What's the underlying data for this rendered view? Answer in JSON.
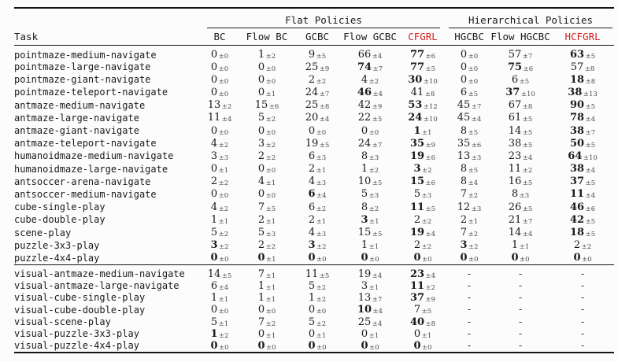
{
  "misc": {
    "pm": "±"
  },
  "colors": {
    "accent_red": "#d42020",
    "rule": "#141414",
    "text": "#1a1a1a",
    "muted": "#4a4a4a"
  },
  "header": {
    "task_label": "Task",
    "groups": [
      {
        "label": "Flat Policies"
      },
      {
        "label": "Hierarchical Policies"
      }
    ],
    "columns": [
      {
        "label": "BC",
        "red": false
      },
      {
        "label": "Flow BC",
        "red": false
      },
      {
        "label": "GCBC",
        "red": false
      },
      {
        "label": "Flow GCBC",
        "red": false
      },
      {
        "label": "CFGRL",
        "red": true
      },
      {
        "label": "HGCBC",
        "red": false
      },
      {
        "label": "Flow HGCBC",
        "red": false
      },
      {
        "label": "HCFGRL",
        "red": true
      }
    ]
  },
  "sections": [
    {
      "rows": [
        {
          "task": "pointmaze-medium-navigate",
          "cells": [
            [
              "0",
              "0",
              0
            ],
            [
              "1",
              "2",
              0
            ],
            [
              "9",
              "5",
              0
            ],
            [
              "66",
              "4",
              0
            ],
            [
              "77",
              "6",
              1
            ],
            [
              "0",
              "0",
              0
            ],
            [
              "57",
              "7",
              0
            ],
            [
              "63",
              "5",
              1
            ]
          ]
        },
        {
          "task": "pointmaze-large-navigate",
          "cells": [
            [
              "0",
              "0",
              0
            ],
            [
              "0",
              "0",
              0
            ],
            [
              "25",
              "9",
              0
            ],
            [
              "74",
              "7",
              1
            ],
            [
              "77",
              "5",
              1
            ],
            [
              "0",
              "0",
              0
            ],
            [
              "75",
              "6",
              1
            ],
            [
              "57",
              "8",
              0
            ]
          ]
        },
        {
          "task": "pointmaze-giant-navigate",
          "cells": [
            [
              "0",
              "0",
              0
            ],
            [
              "0",
              "0",
              0
            ],
            [
              "2",
              "2",
              0
            ],
            [
              "4",
              "2",
              0
            ],
            [
              "30",
              "10",
              1
            ],
            [
              "0",
              "0",
              0
            ],
            [
              "6",
              "5",
              0
            ],
            [
              "18",
              "8",
              1
            ]
          ]
        },
        {
          "task": "pointmaze-teleport-navigate",
          "cells": [
            [
              "0",
              "0",
              0
            ],
            [
              "0",
              "1",
              0
            ],
            [
              "24",
              "7",
              0
            ],
            [
              "46",
              "4",
              1
            ],
            [
              "41",
              "8",
              0
            ],
            [
              "6",
              "5",
              0
            ],
            [
              "37",
              "10",
              1
            ],
            [
              "38",
              "13",
              1
            ]
          ]
        },
        {
          "task": "antmaze-medium-navigate",
          "cells": [
            [
              "13",
              "2",
              0
            ],
            [
              "15",
              "6",
              0
            ],
            [
              "25",
              "8",
              0
            ],
            [
              "42",
              "9",
              0
            ],
            [
              "53",
              "12",
              1
            ],
            [
              "45",
              "7",
              0
            ],
            [
              "67",
              "8",
              0
            ],
            [
              "90",
              "5",
              1
            ]
          ]
        },
        {
          "task": "antmaze-large-navigate",
          "cells": [
            [
              "11",
              "4",
              0
            ],
            [
              "5",
              "2",
              0
            ],
            [
              "20",
              "4",
              0
            ],
            [
              "22",
              "5",
              0
            ],
            [
              "24",
              "10",
              1
            ],
            [
              "45",
              "4",
              0
            ],
            [
              "61",
              "5",
              0
            ],
            [
              "78",
              "4",
              1
            ]
          ]
        },
        {
          "task": "antmaze-giant-navigate",
          "cells": [
            [
              "0",
              "0",
              0
            ],
            [
              "0",
              "0",
              0
            ],
            [
              "0",
              "0",
              0
            ],
            [
              "0",
              "0",
              0
            ],
            [
              "1",
              "1",
              1
            ],
            [
              "8",
              "5",
              0
            ],
            [
              "14",
              "5",
              0
            ],
            [
              "38",
              "7",
              1
            ]
          ]
        },
        {
          "task": "antmaze-teleport-navigate",
          "cells": [
            [
              "4",
              "2",
              0
            ],
            [
              "3",
              "2",
              0
            ],
            [
              "19",
              "5",
              0
            ],
            [
              "24",
              "7",
              0
            ],
            [
              "35",
              "9",
              1
            ],
            [
              "35",
              "6",
              0
            ],
            [
              "38",
              "5",
              0
            ],
            [
              "50",
              "5",
              1
            ]
          ]
        },
        {
          "task": "humanoidmaze-medium-navigate",
          "cells": [
            [
              "3",
              "3",
              0
            ],
            [
              "2",
              "2",
              0
            ],
            [
              "6",
              "3",
              0
            ],
            [
              "8",
              "3",
              0
            ],
            [
              "19",
              "6",
              1
            ],
            [
              "13",
              "3",
              0
            ],
            [
              "23",
              "4",
              0
            ],
            [
              "64",
              "10",
              1
            ]
          ]
        },
        {
          "task": "humanoidmaze-large-navigate",
          "cells": [
            [
              "0",
              "1",
              0
            ],
            [
              "0",
              "0",
              0
            ],
            [
              "2",
              "1",
              0
            ],
            [
              "1",
              "2",
              0
            ],
            [
              "3",
              "2",
              1
            ],
            [
              "8",
              "5",
              0
            ],
            [
              "11",
              "2",
              0
            ],
            [
              "38",
              "4",
              1
            ]
          ]
        },
        {
          "task": "antsoccer-arena-navigate",
          "cells": [
            [
              "2",
              "2",
              0
            ],
            [
              "4",
              "1",
              0
            ],
            [
              "4",
              "3",
              0
            ],
            [
              "10",
              "5",
              0
            ],
            [
              "15",
              "6",
              1
            ],
            [
              "8",
              "4",
              0
            ],
            [
              "16",
              "5",
              0
            ],
            [
              "37",
              "5",
              1
            ]
          ]
        },
        {
          "task": "antsoccer-medium-navigate",
          "cells": [
            [
              "0",
              "0",
              0
            ],
            [
              "0",
              "0",
              0
            ],
            [
              "6",
              "4",
              1
            ],
            [
              "5",
              "3",
              0
            ],
            [
              "5",
              "3",
              0
            ],
            [
              "7",
              "2",
              0
            ],
            [
              "8",
              "3",
              0
            ],
            [
              "11",
              "4",
              1
            ]
          ]
        },
        {
          "task": "cube-single-play",
          "cells": [
            [
              "4",
              "2",
              0
            ],
            [
              "7",
              "5",
              0
            ],
            [
              "6",
              "2",
              0
            ],
            [
              "8",
              "2",
              0
            ],
            [
              "11",
              "5",
              1
            ],
            [
              "12",
              "3",
              0
            ],
            [
              "26",
              "5",
              0
            ],
            [
              "46",
              "6",
              1
            ]
          ]
        },
        {
          "task": "cube-double-play",
          "cells": [
            [
              "1",
              "1",
              0
            ],
            [
              "2",
              "1",
              0
            ],
            [
              "2",
              "1",
              0
            ],
            [
              "3",
              "1",
              1
            ],
            [
              "2",
              "2",
              0
            ],
            [
              "2",
              "1",
              0
            ],
            [
              "21",
              "7",
              0
            ],
            [
              "42",
              "5",
              1
            ]
          ]
        },
        {
          "task": "scene-play",
          "cells": [
            [
              "5",
              "2",
              0
            ],
            [
              "5",
              "3",
              0
            ],
            [
              "4",
              "3",
              0
            ],
            [
              "15",
              "5",
              0
            ],
            [
              "19",
              "4",
              1
            ],
            [
              "7",
              "2",
              0
            ],
            [
              "14",
              "4",
              0
            ],
            [
              "18",
              "5",
              1
            ]
          ]
        },
        {
          "task": "puzzle-3x3-play",
          "cells": [
            [
              "3",
              "2",
              1
            ],
            [
              "2",
              "2",
              0
            ],
            [
              "3",
              "2",
              1
            ],
            [
              "1",
              "1",
              0
            ],
            [
              "2",
              "2",
              0
            ],
            [
              "3",
              "2",
              1
            ],
            [
              "1",
              "1",
              0
            ],
            [
              "2",
              "2",
              0
            ]
          ]
        },
        {
          "task": "puzzle-4x4-play",
          "cells": [
            [
              "0",
              "0",
              1
            ],
            [
              "0",
              "1",
              1
            ],
            [
              "0",
              "0",
              1
            ],
            [
              "0",
              "0",
              1
            ],
            [
              "0",
              "0",
              1
            ],
            [
              "0",
              "0",
              1
            ],
            [
              "0",
              "0",
              1
            ],
            [
              "0",
              "0",
              1
            ]
          ]
        }
      ]
    },
    {
      "rows": [
        {
          "task": "visual-antmaze-medium-navigate",
          "cells": [
            [
              "14",
              "5",
              0
            ],
            [
              "7",
              "1",
              0
            ],
            [
              "11",
              "5",
              0
            ],
            [
              "19",
              "4",
              0
            ],
            [
              "23",
              "4",
              1
            ],
            [
              "-",
              null,
              0
            ],
            [
              "-",
              null,
              0
            ],
            [
              "-",
              null,
              0
            ]
          ]
        },
        {
          "task": "visual-antmaze-large-navigate",
          "cells": [
            [
              "6",
              "4",
              0
            ],
            [
              "1",
              "1",
              0
            ],
            [
              "5",
              "2",
              0
            ],
            [
              "3",
              "1",
              0
            ],
            [
              "11",
              "2",
              1
            ],
            [
              "-",
              null,
              0
            ],
            [
              "-",
              null,
              0
            ],
            [
              "-",
              null,
              0
            ]
          ]
        },
        {
          "task": "visual-cube-single-play",
          "cells": [
            [
              "1",
              "1",
              0
            ],
            [
              "1",
              "1",
              0
            ],
            [
              "1",
              "2",
              0
            ],
            [
              "13",
              "7",
              0
            ],
            [
              "37",
              "9",
              1
            ],
            [
              "-",
              null,
              0
            ],
            [
              "-",
              null,
              0
            ],
            [
              "-",
              null,
              0
            ]
          ]
        },
        {
          "task": "visual-cube-double-play",
          "cells": [
            [
              "0",
              "0",
              0
            ],
            [
              "0",
              "0",
              0
            ],
            [
              "0",
              "0",
              0
            ],
            [
              "10",
              "4",
              1
            ],
            [
              "7",
              "5",
              0
            ],
            [
              "-",
              null,
              0
            ],
            [
              "-",
              null,
              0
            ],
            [
              "-",
              null,
              0
            ]
          ]
        },
        {
          "task": "visual-scene-play",
          "cells": [
            [
              "5",
              "1",
              0
            ],
            [
              "7",
              "2",
              0
            ],
            [
              "5",
              "2",
              0
            ],
            [
              "25",
              "4",
              0
            ],
            [
              "40",
              "8",
              1
            ],
            [
              "-",
              null,
              0
            ],
            [
              "-",
              null,
              0
            ],
            [
              "-",
              null,
              0
            ]
          ]
        },
        {
          "task": "visual-puzzle-3x3-play",
          "cells": [
            [
              "1",
              "2",
              1
            ],
            [
              "0",
              "1",
              0
            ],
            [
              "0",
              "1",
              0
            ],
            [
              "0",
              "1",
              0
            ],
            [
              "0",
              "1",
              0
            ],
            [
              "-",
              null,
              0
            ],
            [
              "-",
              null,
              0
            ],
            [
              "-",
              null,
              0
            ]
          ]
        },
        {
          "task": "visual-puzzle-4x4-play",
          "cells": [
            [
              "0",
              "0",
              1
            ],
            [
              "0",
              "0",
              1
            ],
            [
              "0",
              "0",
              1
            ],
            [
              "0",
              "0",
              1
            ],
            [
              "0",
              "0",
              1
            ],
            [
              "-",
              null,
              0
            ],
            [
              "-",
              null,
              0
            ],
            [
              "-",
              null,
              0
            ]
          ]
        }
      ]
    }
  ]
}
